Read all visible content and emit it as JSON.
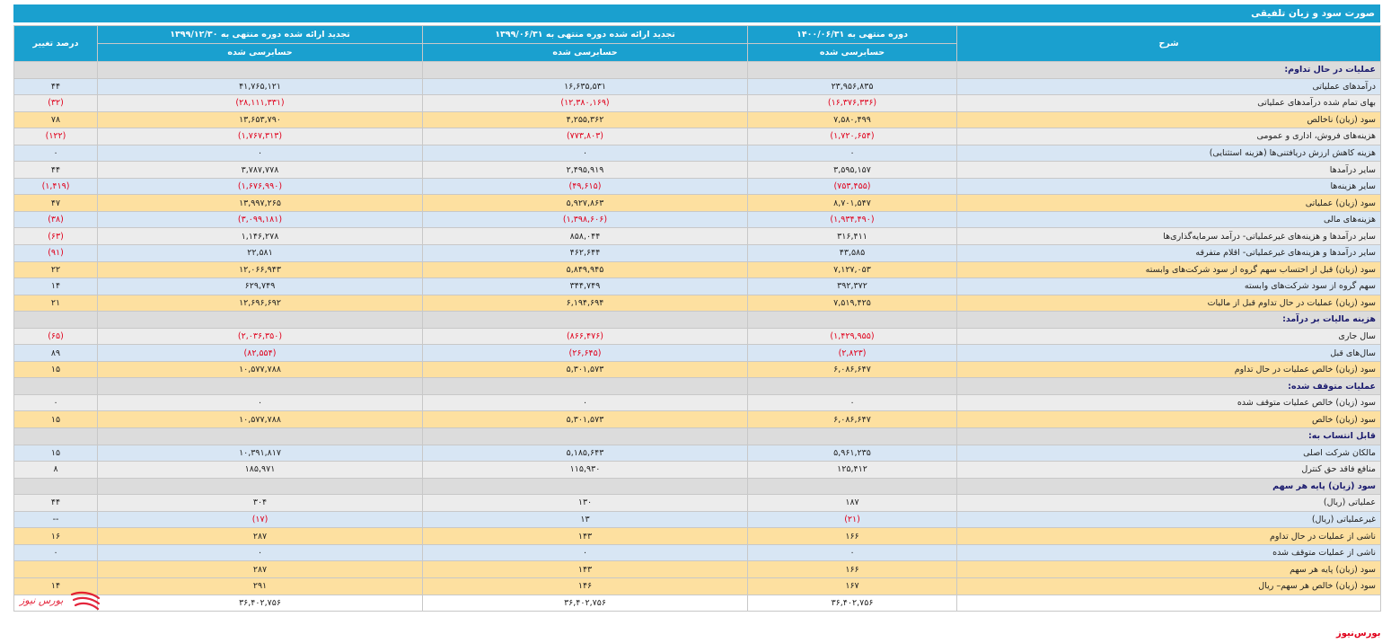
{
  "header": {
    "title": "صورت سود و زیان تلفیقی"
  },
  "columns": {
    "desc": "شرح",
    "p1": "دوره منتهی به ۱۴۰۰/۰۶/۳۱",
    "p2": "تجدید ارائه شده دوره منتهی به ۱۳۹۹/۰۶/۳۱",
    "p3": "تجدید ارائه شده دوره منتهی به ۱۳۹۹/۱۲/۳۰",
    "change": "درصد تغییر",
    "audit": "حسابرسی شده"
  },
  "rows": [
    {
      "style": "section",
      "desc": "عملیات در حال تداوم:",
      "p1": "",
      "p2": "",
      "p3": "",
      "ch": ""
    },
    {
      "style": "blue",
      "desc": "درآمدهای عملیاتی",
      "p1": "۲۳,۹۵۶,۸۳۵",
      "p2": "۱۶,۶۳۵,۵۳۱",
      "p3": "۴۱,۷۶۵,۱۲۱",
      "ch": "۴۴"
    },
    {
      "style": "gray",
      "desc": "بهای تمام شده درآمدهای عملیاتی",
      "p1": "(۱۶,۳۷۶,۳۳۶)",
      "p2": "(۱۲,۳۸۰,۱۶۹)",
      "p3": "(۲۸,۱۱۱,۳۳۱)",
      "ch": "(۳۲)"
    },
    {
      "style": "yellow",
      "desc": "سود (زیان) ناخالص",
      "p1": "۷,۵۸۰,۴۹۹",
      "p2": "۴,۲۵۵,۳۶۲",
      "p3": "۱۳,۶۵۳,۷۹۰",
      "ch": "۷۸"
    },
    {
      "style": "gray",
      "desc": "هزینه‌های فروش، اداری و عمومی",
      "p1": "(۱,۷۲۰,۶۵۴)",
      "p2": "(۷۷۳,۸۰۳)",
      "p3": "(۱,۷۶۷,۳۱۳)",
      "ch": "(۱۲۲)"
    },
    {
      "style": "blue",
      "desc": "هزینه کاهش ارزش دریافتنی‌ها (هزینه استثنایی)",
      "p1": "۰",
      "p2": "۰",
      "p3": "۰",
      "ch": "۰"
    },
    {
      "style": "gray",
      "desc": "سایر درآمدها",
      "p1": "۳,۵۹۵,۱۵۷",
      "p2": "۲,۴۹۵,۹۱۹",
      "p3": "۳,۷۸۷,۷۷۸",
      "ch": "۴۴"
    },
    {
      "style": "blue",
      "desc": "سایر هزینه‌ها",
      "p1": "(۷۵۳,۴۵۵)",
      "p2": "(۴۹,۶۱۵)",
      "p3": "(۱,۶۷۶,۹۹۰)",
      "ch": "(۱,۴۱۹)"
    },
    {
      "style": "yellow",
      "desc": "سود (زیان) عملیاتی",
      "p1": "۸,۷۰۱,۵۴۷",
      "p2": "۵,۹۲۷,۸۶۳",
      "p3": "۱۳,۹۹۷,۲۶۵",
      "ch": "۴۷"
    },
    {
      "style": "blue",
      "desc": "هزینه‌های مالی",
      "p1": "(۱,۹۳۴,۴۹۰)",
      "p2": "(۱,۳۹۸,۶۰۶)",
      "p3": "(۳,۰۹۹,۱۸۱)",
      "ch": "(۳۸)"
    },
    {
      "style": "gray",
      "desc": "سایر درآمدها و هزینه‌های غیرعملیاتی- درآمد سرمایه‌گذاری‌ها",
      "p1": "۳۱۶,۴۱۱",
      "p2": "۸۵۸,۰۴۴",
      "p3": "۱,۱۴۶,۲۷۸",
      "ch": "(۶۳)"
    },
    {
      "style": "blue",
      "desc": "سایر درآمدها و هزینه‌های غیرعملیاتی- اقلام متفرقه",
      "p1": "۴۳,۵۸۵",
      "p2": "۴۶۲,۶۴۴",
      "p3": "۲۲,۵۸۱",
      "ch": "(۹۱)"
    },
    {
      "style": "yellow",
      "desc": "سود (زیان) قبل از احتساب سهم گروه از سود شرکت‌های وابسته",
      "p1": "۷,۱۲۷,۰۵۳",
      "p2": "۵,۸۴۹,۹۴۵",
      "p3": "۱۲,۰۶۶,۹۴۳",
      "ch": "۲۲"
    },
    {
      "style": "blue",
      "desc": "سهم گروه از سود شرکت‌های وابسته",
      "p1": "۳۹۲,۳۷۲",
      "p2": "۳۴۴,۷۴۹",
      "p3": "۶۲۹,۷۴۹",
      "ch": "۱۴"
    },
    {
      "style": "yellow",
      "desc": "سود (زیان) عملیات در حال تداوم قبل از مالیات",
      "p1": "۷,۵۱۹,۴۲۵",
      "p2": "۶,۱۹۴,۶۹۴",
      "p3": "۱۲,۶۹۶,۶۹۲",
      "ch": "۲۱"
    },
    {
      "style": "section",
      "desc": "هزینه مالیات بر درآمد:",
      "p1": "",
      "p2": "",
      "p3": "",
      "ch": ""
    },
    {
      "style": "gray",
      "desc": "سال جاری",
      "p1": "(۱,۴۲۹,۹۵۵)",
      "p2": "(۸۶۶,۴۷۶)",
      "p3": "(۲,۰۳۶,۳۵۰)",
      "ch": "(۶۵)"
    },
    {
      "style": "blue",
      "desc": "سال‌های قبل",
      "p1": "(۲,۸۲۳)",
      "p2": "(۲۶,۶۴۵)",
      "p3": "(۸۲,۵۵۴)",
      "ch": "۸۹"
    },
    {
      "style": "yellow",
      "desc": "سود (زیان) خالص عملیات در حال تداوم",
      "p1": "۶,۰۸۶,۶۴۷",
      "p2": "۵,۳۰۱,۵۷۳",
      "p3": "۱۰,۵۷۷,۷۸۸",
      "ch": "۱۵"
    },
    {
      "style": "section",
      "desc": "عملیات متوقف شده:",
      "p1": "",
      "p2": "",
      "p3": "",
      "ch": ""
    },
    {
      "style": "gray",
      "desc": "سود (زیان) خالص عملیات متوقف شده",
      "p1": "۰",
      "p2": "۰",
      "p3": "۰",
      "ch": "۰"
    },
    {
      "style": "yellow",
      "desc": "سود (زیان) خالص",
      "p1": "۶,۰۸۶,۶۴۷",
      "p2": "۵,۳۰۱,۵۷۳",
      "p3": "۱۰,۵۷۷,۷۸۸",
      "ch": "۱۵"
    },
    {
      "style": "section",
      "desc": "قابل انتساب به:",
      "p1": "",
      "p2": "",
      "p3": "",
      "ch": ""
    },
    {
      "style": "blue",
      "desc": "مالکان شرکت اصلی",
      "p1": "۵,۹۶۱,۲۳۵",
      "p2": "۵,۱۸۵,۶۴۳",
      "p3": "۱۰,۳۹۱,۸۱۷",
      "ch": "۱۵"
    },
    {
      "style": "gray",
      "desc": "منافع فاقد حق کنترل",
      "p1": "۱۲۵,۴۱۲",
      "p2": "۱۱۵,۹۳۰",
      "p3": "۱۸۵,۹۷۱",
      "ch": "۸"
    },
    {
      "style": "section",
      "desc": "سود (زیان) پایه هر سهم",
      "p1": "",
      "p2": "",
      "p3": "",
      "ch": ""
    },
    {
      "style": "gray",
      "desc": "عملیاتی (ریال)",
      "p1": "۱۸۷",
      "p2": "۱۳۰",
      "p3": "۳۰۴",
      "ch": "۴۴"
    },
    {
      "style": "blue",
      "desc": "غیرعملیاتی (ریال)",
      "p1": "(۲۱)",
      "p2": "۱۳",
      "p3": "(۱۷)",
      "ch": "--"
    },
    {
      "style": "yellow",
      "desc": "ناشی از عملیات در حال تداوم",
      "p1": "۱۶۶",
      "p2": "۱۴۳",
      "p3": "۲۸۷",
      "ch": "۱۶"
    },
    {
      "style": "blue",
      "desc": "ناشی از عملیات متوقف شده",
      "p1": "۰",
      "p2": "۰",
      "p3": "۰",
      "ch": "۰"
    },
    {
      "style": "yellow",
      "desc": "سود (زیان) پایه هر سهم",
      "p1": "۱۶۶",
      "p2": "۱۴۳",
      "p3": "۲۸۷",
      "ch": ""
    },
    {
      "style": "yellow",
      "desc": "سود (زیان) خالص هر سهم– ریال",
      "p1": "۱۶۷",
      "p2": "۱۴۶",
      "p3": "۲۹۱",
      "ch": "۱۴"
    },
    {
      "style": "final",
      "desc": "",
      "p1": "۳۶,۴۰۲,۷۵۶",
      "p2": "۳۶,۴۰۲,۷۵۶",
      "p3": "۳۶,۴۰۲,۷۵۶",
      "ch": ""
    }
  ],
  "branding": {
    "tag": "بورس‌نیوز",
    "logo_text": "بورس نیوز",
    "logo_color": "#e0001b"
  }
}
